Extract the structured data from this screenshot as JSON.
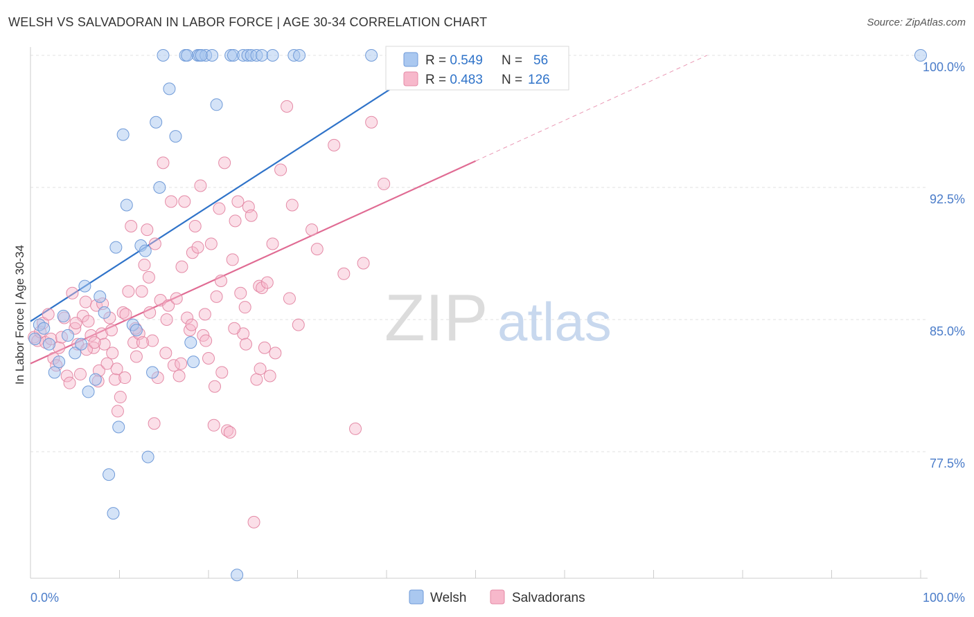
{
  "title": "WELSH VS SALVADORAN IN LABOR FORCE | AGE 30-34 CORRELATION CHART",
  "source": "Source: ZipAtlas.com",
  "watermark": {
    "zip": "ZIP",
    "atlas": "atlas"
  },
  "colors": {
    "welsh_fill": "#aac8f0",
    "welsh_stroke": "#6f9ad8",
    "welsh_line": "#2f73c9",
    "salv_fill": "#f7b8cb",
    "salv_stroke": "#e48aa6",
    "salv_line": "#e06b93",
    "tick_label": "#4a7cc9",
    "grid": "#e2e2e2"
  },
  "legend": {
    "welsh": {
      "r_label": "R = ",
      "r_value": "0.549",
      "n_label": "N = ",
      "n_value": "56"
    },
    "salv": {
      "r_label": "R = ",
      "r_value": "0.483",
      "n_label": "N = ",
      "n_value": "126"
    }
  },
  "bottom_legend": {
    "welsh": "Welsh",
    "salv": "Salvadorans"
  },
  "chart_data": {
    "type": "scatter",
    "title": "WELSH VS SALVADORAN IN LABOR FORCE | AGE 30-34 CORRELATION CHART",
    "xlabel": "",
    "ylabel": "In Labor Force | Age 30-34",
    "xlim": [
      0,
      100
    ],
    "ylim": [
      70.5,
      101
    ],
    "y_ticks": [
      77.5,
      85.0,
      92.5,
      100.0
    ],
    "y_tick_labels": [
      "77.5%",
      "85.0%",
      "92.5%",
      "100.0%"
    ],
    "x_tick_labels": [
      "0.0%",
      "100.0%"
    ],
    "grid": true,
    "legend_position": "top-center",
    "series": [
      {
        "name": "Welsh",
        "r": 0.549,
        "n": 56,
        "trend": {
          "x0": 0,
          "y0": 84.9,
          "x1": 46,
          "y1": 99.9
        },
        "points": [
          [
            0.5,
            83.9
          ],
          [
            1,
            84.7
          ],
          [
            1.5,
            84.5
          ],
          [
            2.1,
            83.6
          ],
          [
            2.7,
            82
          ],
          [
            3.2,
            82.6
          ],
          [
            3.7,
            85.2
          ],
          [
            4.2,
            84.1
          ],
          [
            5,
            83.1
          ],
          [
            5.7,
            83.6
          ],
          [
            6.1,
            86.9
          ],
          [
            6.5,
            80.9
          ],
          [
            7.3,
            81.6
          ],
          [
            7.8,
            86.3
          ],
          [
            8.3,
            85.4
          ],
          [
            8.8,
            76.2
          ],
          [
            9.3,
            74
          ],
          [
            9.6,
            89.1
          ],
          [
            9.9,
            78.9
          ],
          [
            10.4,
            95.5
          ],
          [
            10.8,
            91.5
          ],
          [
            11.5,
            84.7
          ],
          [
            11.9,
            84.4
          ],
          [
            12.4,
            89.2
          ],
          [
            12.9,
            88.9
          ],
          [
            13.2,
            77.2
          ],
          [
            13.7,
            82
          ],
          [
            14.1,
            96.2
          ],
          [
            14.5,
            92.5
          ],
          [
            14.9,
            100
          ],
          [
            15.6,
            98.1
          ],
          [
            16.3,
            95.4
          ],
          [
            17.4,
            100
          ],
          [
            17.6,
            100
          ],
          [
            18,
            83.7
          ],
          [
            18.3,
            82.6
          ],
          [
            18.8,
            100
          ],
          [
            19,
            100
          ],
          [
            19.7,
            100
          ],
          [
            20.4,
            100
          ],
          [
            20.9,
            97.2
          ],
          [
            22.5,
            100
          ],
          [
            22.8,
            100
          ],
          [
            23.2,
            70.5
          ],
          [
            23.9,
            100
          ],
          [
            24.4,
            100
          ],
          [
            24.8,
            100
          ],
          [
            25.4,
            100
          ],
          [
            26,
            100
          ],
          [
            27.2,
            100
          ],
          [
            29.6,
            100
          ],
          [
            30.2,
            100
          ],
          [
            38.3,
            100
          ],
          [
            41.3,
            100
          ],
          [
            19.2,
            100
          ],
          [
            100,
            100
          ]
        ]
      },
      {
        "name": "Salvadorans",
        "r": 0.483,
        "n": 126,
        "trend": {
          "x0": 0,
          "y0": 82.5,
          "x1": 50,
          "y1": 94
        },
        "trend_ext": {
          "x0": 50,
          "y0": 94,
          "x1": 76,
          "y1": 100
        },
        "points": [
          [
            0.4,
            84
          ],
          [
            0.8,
            83.8
          ],
          [
            1.1,
            84.3
          ],
          [
            1.4,
            84.8
          ],
          [
            1.7,
            83.7
          ],
          [
            2,
            85.3
          ],
          [
            2.3,
            83.9
          ],
          [
            2.6,
            82.8
          ],
          [
            2.9,
            82.4
          ],
          [
            3.2,
            83.4
          ],
          [
            3.5,
            84
          ],
          [
            3.8,
            85.1
          ],
          [
            4.1,
            81.8
          ],
          [
            4.4,
            81.4
          ],
          [
            4.7,
            86.5
          ],
          [
            5,
            84.5
          ],
          [
            5.3,
            83.6
          ],
          [
            5.6,
            81.9
          ],
          [
            5.9,
            85.2
          ],
          [
            6.2,
            86
          ],
          [
            6.5,
            84.9
          ],
          [
            6.8,
            84.1
          ],
          [
            7.1,
            83.4
          ],
          [
            7.4,
            85.8
          ],
          [
            7.7,
            82.1
          ],
          [
            8,
            84.2
          ],
          [
            8.3,
            83.6
          ],
          [
            8.6,
            82.5
          ],
          [
            8.9,
            85.1
          ],
          [
            9.2,
            83.1
          ],
          [
            9.5,
            81.6
          ],
          [
            9.8,
            79.8
          ],
          [
            10.1,
            80.6
          ],
          [
            10.4,
            85.4
          ],
          [
            10.7,
            85.3
          ],
          [
            11,
            86.6
          ],
          [
            11.3,
            90.3
          ],
          [
            11.6,
            83.7
          ],
          [
            11.9,
            82.9
          ],
          [
            12.2,
            84.2
          ],
          [
            12.5,
            86.6
          ],
          [
            12.8,
            88.1
          ],
          [
            13.1,
            90.1
          ],
          [
            13.4,
            85.4
          ],
          [
            13.7,
            83.8
          ],
          [
            14,
            89.3
          ],
          [
            14.3,
            81.7
          ],
          [
            14.6,
            86.1
          ],
          [
            14.9,
            93.9
          ],
          [
            15.2,
            83.1
          ],
          [
            15.5,
            85.8
          ],
          [
            15.8,
            91.7
          ],
          [
            16.1,
            82.4
          ],
          [
            16.4,
            86.2
          ],
          [
            16.7,
            81.8
          ],
          [
            17,
            88
          ],
          [
            17.3,
            91.7
          ],
          [
            17.6,
            85.1
          ],
          [
            17.9,
            84.4
          ],
          [
            18.2,
            88.8
          ],
          [
            18.5,
            90.3
          ],
          [
            18.8,
            89.1
          ],
          [
            19.1,
            92.6
          ],
          [
            19.4,
            84.1
          ],
          [
            19.7,
            83.8
          ],
          [
            20,
            82.8
          ],
          [
            20.3,
            89.3
          ],
          [
            20.6,
            79
          ],
          [
            20.9,
            86.3
          ],
          [
            21.2,
            91.3
          ],
          [
            21.5,
            82
          ],
          [
            21.8,
            93.9
          ],
          [
            22.1,
            78.7
          ],
          [
            22.4,
            78.6
          ],
          [
            22.7,
            88.4
          ],
          [
            23,
            90.6
          ],
          [
            23.3,
            91.7
          ],
          [
            23.6,
            86.5
          ],
          [
            23.9,
            84.2
          ],
          [
            24.2,
            83.6
          ],
          [
            24.5,
            91.4
          ],
          [
            24.8,
            90.9
          ],
          [
            25.1,
            73.5
          ],
          [
            25.4,
            81.6
          ],
          [
            25.7,
            86.9
          ],
          [
            26,
            86.8
          ],
          [
            26.3,
            83.4
          ],
          [
            26.6,
            87.1
          ],
          [
            26.9,
            81.8
          ],
          [
            27.2,
            89.3
          ],
          [
            28.1,
            93.5
          ],
          [
            28.8,
            97.1
          ],
          [
            29.4,
            91.5
          ],
          [
            30.1,
            84.7
          ],
          [
            31.6,
            90.1
          ],
          [
            34.1,
            94.9
          ],
          [
            36.5,
            78.8
          ],
          [
            37.4,
            88.2
          ],
          [
            38.3,
            96.2
          ],
          [
            39.7,
            92.7
          ],
          [
            40.8,
            100
          ],
          [
            5.1,
            84.8
          ],
          [
            6.3,
            83.3
          ],
          [
            7.6,
            81.5
          ],
          [
            8.1,
            85.9
          ],
          [
            9.7,
            82.2
          ],
          [
            10.6,
            81.7
          ],
          [
            11.8,
            84.5
          ],
          [
            12.6,
            83.7
          ],
          [
            13.9,
            79.1
          ],
          [
            15.3,
            85
          ],
          [
            16.9,
            82.5
          ],
          [
            18.1,
            84.7
          ],
          [
            19.6,
            85.3
          ],
          [
            20.7,
            81.2
          ],
          [
            21.4,
            87.2
          ],
          [
            22.9,
            84.5
          ],
          [
            24.1,
            85.7
          ],
          [
            25.8,
            82.2
          ],
          [
            27.5,
            83.1
          ],
          [
            29.1,
            86.2
          ],
          [
            32.2,
            89
          ],
          [
            35.2,
            87.6
          ],
          [
            7.2,
            83.7
          ],
          [
            9.1,
            84.4
          ],
          [
            13.3,
            87.4
          ]
        ]
      }
    ]
  }
}
